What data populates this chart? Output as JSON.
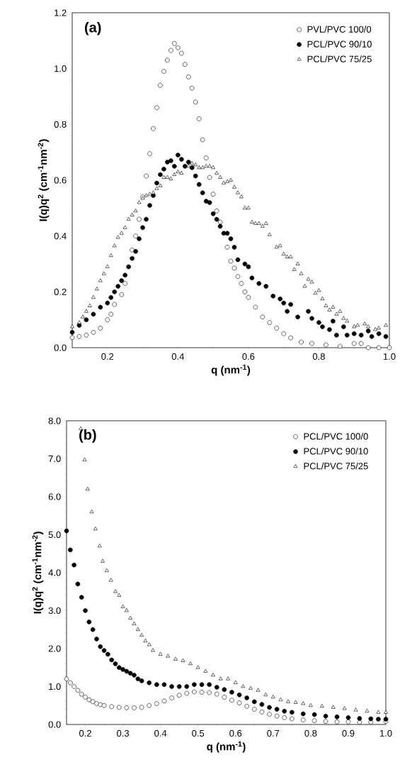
{
  "chart_data": [
    {
      "type": "scatter",
      "annotations": [
        "(a)"
      ],
      "xlabel": "q (nm$^{-1}$)",
      "ylabel": "I(q)q$^{2}$ (cm$^{-1}$nm$^{-2}$)",
      "xlim": [
        0.1,
        1.0
      ],
      "ylim": [
        0.0,
        1.2
      ],
      "xticks": [
        0.2,
        0.4,
        0.6,
        0.8,
        {
          "value": 1.0,
          "label": "1.0"
        }
      ],
      "yticks": [
        {
          "value": 0.0,
          "label": "0.0"
        },
        0.2,
        0.4,
        0.6,
        0.8,
        {
          "value": 1.0,
          "label": "1.0"
        },
        1.2
      ],
      "legend": "top right",
      "grid": false,
      "series": [
        {
          "name": "PVL/PVC 100/0",
          "color": "#ffffff",
          "marker": "circle",
          "x": [
            0.1,
            0.12,
            0.14,
            0.16,
            0.18,
            0.2,
            0.21,
            0.22,
            0.24,
            0.25,
            0.26,
            0.27,
            0.28,
            0.29,
            0.3,
            0.31,
            0.32,
            0.33,
            0.34,
            0.35,
            0.36,
            0.37,
            0.38,
            0.39,
            0.4,
            0.41,
            0.42,
            0.43,
            0.44,
            0.45,
            0.46,
            0.47,
            0.48,
            0.49,
            0.5,
            0.51,
            0.52,
            0.53,
            0.54,
            0.55,
            0.56,
            0.57,
            0.58,
            0.59,
            0.6,
            0.62,
            0.64,
            0.66,
            0.68,
            0.7,
            0.72,
            0.75,
            0.78,
            0.82,
            0.86,
            0.9,
            0.92,
            0.94,
            0.97,
            1.0
          ],
          "values": [
            0.036,
            0.04,
            0.045,
            0.055,
            0.07,
            0.1,
            0.12,
            0.155,
            0.19,
            0.23,
            null,
            0.35,
            0.4,
            0.46,
            0.54,
            0.615,
            0.695,
            0.785,
            0.86,
            0.94,
            0.99,
            1.03,
            1.065,
            1.09,
            1.075,
            1.055,
            1.015,
            0.97,
            0.93,
            0.88,
            0.82,
            0.745,
            0.68,
            0.61,
            0.55,
            0.49,
            0.45,
            null,
            0.36,
            0.31,
            0.285,
            0.255,
            0.23,
            0.2,
            0.18,
            0.145,
            0.11,
            0.09,
            0.07,
            0.05,
            0.035,
            0.02,
            0.015,
            0.01,
            0.005,
            0.015,
            0.015,
            0.0,
            0.0,
            0.0
          ]
        },
        {
          "name": "PCL/PVC 90/10",
          "color": "#000000",
          "marker": "circle",
          "x": [
            0.1,
            0.12,
            0.14,
            0.16,
            0.18,
            0.2,
            0.21,
            0.22,
            0.23,
            0.24,
            0.25,
            0.26,
            0.27,
            0.28,
            0.29,
            0.3,
            0.31,
            0.32,
            0.33,
            0.34,
            0.35,
            0.36,
            0.37,
            0.38,
            0.39,
            0.4,
            0.41,
            0.42,
            0.43,
            0.44,
            0.45,
            0.46,
            0.47,
            0.48,
            0.49,
            0.5,
            0.51,
            0.52,
            0.53,
            0.54,
            0.55,
            0.56,
            0.57,
            0.59,
            0.6,
            0.61,
            0.63,
            0.65,
            0.67,
            0.69,
            0.7,
            0.71,
            0.72,
            0.74,
            0.77,
            0.78,
            0.8,
            0.81,
            0.83,
            0.84,
            0.85,
            0.87,
            0.88,
            0.9,
            0.92,
            0.94,
            0.95,
            0.97,
            0.99
          ],
          "values": [
            0.055,
            0.08,
            0.1,
            0.12,
            0.145,
            0.16,
            0.18,
            0.2,
            0.22,
            0.24,
            0.26,
            0.29,
            0.32,
            0.345,
            0.39,
            0.43,
            0.46,
            0.51,
            0.545,
            0.59,
            0.62,
            0.64,
            0.665,
            0.67,
            0.65,
            0.69,
            0.675,
            0.65,
            0.665,
            0.645,
            0.615,
            0.585,
            0.555,
            0.525,
            0.52,
            0.48,
            0.46,
            0.435,
            0.41,
            0.41,
            0.39,
            0.36,
            0.315,
            0.3,
            0.29,
            0.25,
            0.23,
            0.22,
            0.185,
            0.175,
            0.16,
            0.13,
            0.155,
            0.11,
            0.13,
            0.105,
            0.09,
            0.075,
            0.065,
            0.095,
            0.045,
            0.075,
            0.045,
            0.05,
            0.045,
            0.06,
            0.04,
            0.05,
            0.04
          ]
        },
        {
          "name": "PCL/PVC 75/25",
          "color": "#ffffff",
          "marker": "triangle",
          "x": [
            0.1,
            0.12,
            0.13,
            0.14,
            0.15,
            0.16,
            0.17,
            0.18,
            0.19,
            0.2,
            0.21,
            0.22,
            0.23,
            0.24,
            0.25,
            0.26,
            0.27,
            0.28,
            0.29,
            0.3,
            0.31,
            0.32,
            0.33,
            0.34,
            0.35,
            0.36,
            0.37,
            0.38,
            0.39,
            0.4,
            0.41,
            0.43,
            0.44,
            0.45,
            0.46,
            0.47,
            0.48,
            0.49,
            0.5,
            0.51,
            0.52,
            0.53,
            0.54,
            0.55,
            0.56,
            0.57,
            0.58,
            0.59,
            0.6,
            0.61,
            0.62,
            0.63,
            0.64,
            0.65,
            0.66,
            0.68,
            0.69,
            0.7,
            0.71,
            0.72,
            0.73,
            0.74,
            0.75,
            0.76,
            0.77,
            0.78,
            0.79,
            0.8,
            0.81,
            0.82,
            0.83,
            0.84,
            0.85,
            0.86,
            0.87,
            0.88,
            0.9,
            0.91,
            0.93,
            0.94,
            0.96,
            0.97,
            0.99
          ],
          "values": [
            0.075,
            0.09,
            0.11,
            0.13,
            0.15,
            0.18,
            0.21,
            0.24,
            0.265,
            0.29,
            0.33,
            0.365,
            0.395,
            0.41,
            0.43,
            0.46,
            0.475,
            0.49,
            0.52,
            0.535,
            0.545,
            0.55,
            0.555,
            0.57,
            0.58,
            0.61,
            0.61,
            0.605,
            0.62,
            0.63,
            0.625,
            0.65,
            0.66,
            0.655,
            0.645,
            0.645,
            0.65,
            0.65,
            0.645,
            0.625,
            0.61,
            0.59,
            0.595,
            0.6,
            0.575,
            0.555,
            0.54,
            0.5,
            0.5,
            0.45,
            0.445,
            0.445,
            0.435,
            0.445,
            0.405,
            0.36,
            0.365,
            0.335,
            0.325,
            0.325,
            0.28,
            0.3,
            0.265,
            0.22,
            0.245,
            0.235,
            0.195,
            0.205,
            0.175,
            0.15,
            0.135,
            0.145,
            0.12,
            0.13,
            0.105,
            0.095,
            0.075,
            0.08,
            0.085,
            0.075,
            0.065,
            0.07,
            0.08
          ]
        }
      ]
    },
    {
      "type": "scatter",
      "annotations": [
        "(b)"
      ],
      "xlabel": "q (nm$^{-1}$)",
      "ylabel": "I(q)q$^{2}$ (cm$^{-1}$nm$^{-2}$)",
      "xlim": [
        0.15,
        1.0
      ],
      "ylim": [
        0.0,
        8.0
      ],
      "xticks": [
        0.2,
        0.3,
        0.4,
        0.5,
        0.6,
        0.7,
        0.8,
        0.9,
        {
          "value": 1.0,
          "label": "1.0"
        }
      ],
      "yticks": [
        {
          "value": 0.0,
          "label": "0.0"
        },
        {
          "value": 1.0,
          "label": "1.0"
        },
        {
          "value": 2.0,
          "label": "2.0"
        },
        {
          "value": 3.0,
          "label": "3.0"
        },
        {
          "value": 4.0,
          "label": "4.0"
        },
        {
          "value": 5.0,
          "label": "5.0"
        },
        {
          "value": 6.0,
          "label": "6.0"
        },
        {
          "value": 7.0,
          "label": "7.0"
        },
        {
          "value": 8.0,
          "label": "8.0"
        }
      ],
      "legend": "top right",
      "grid": false,
      "series": [
        {
          "name": "PCL/PVC 100/0",
          "color": "#ffffff",
          "marker": "circle",
          "x": [
            0.15,
            0.16,
            0.17,
            0.18,
            0.19,
            0.2,
            0.21,
            0.22,
            0.23,
            0.24,
            0.25,
            0.27,
            0.29,
            0.31,
            0.33,
            0.35,
            0.37,
            0.39,
            0.41,
            0.43,
            0.45,
            0.47,
            0.49,
            0.51,
            0.53,
            0.55,
            0.57,
            0.59,
            0.61,
            0.63,
            0.65,
            0.67,
            0.69,
            0.71,
            0.73,
            0.75,
            0.78,
            0.81,
            0.84,
            0.87,
            0.9,
            0.93,
            0.96,
            0.98,
            1.0
          ],
          "values": [
            1.2,
            1.1,
            1.0,
            0.9,
            0.8,
            0.72,
            0.65,
            0.6,
            0.55,
            0.52,
            0.5,
            0.47,
            0.45,
            0.44,
            0.44,
            0.45,
            0.5,
            0.55,
            0.62,
            0.7,
            0.77,
            0.82,
            0.86,
            0.85,
            0.84,
            0.8,
            0.72,
            0.64,
            0.57,
            0.48,
            0.4,
            0.33,
            0.27,
            0.22,
            0.18,
            0.15,
            0.12,
            0.1,
            0.08,
            0.07,
            0.07,
            0.06,
            0.06,
            null,
            0.08
          ]
        },
        {
          "name": "PCL/PVC 90/10",
          "color": "#000000",
          "marker": "circle",
          "x": [
            0.15,
            0.16,
            0.17,
            0.18,
            0.19,
            0.2,
            0.21,
            0.22,
            0.23,
            0.24,
            0.25,
            0.26,
            0.27,
            0.28,
            0.29,
            0.3,
            0.31,
            0.32,
            0.33,
            0.34,
            0.35,
            0.37,
            0.39,
            0.41,
            0.43,
            0.45,
            0.47,
            0.49,
            0.51,
            0.53,
            0.55,
            0.57,
            0.59,
            0.61,
            0.63,
            0.65,
            0.67,
            0.69,
            0.71,
            0.73,
            0.75,
            0.78,
            0.81,
            0.84,
            0.87,
            0.9,
            0.93,
            0.96,
            0.98,
            1.0
          ],
          "values": [
            5.1,
            4.6,
            4.2,
            3.7,
            3.35,
            3.0,
            2.7,
            2.5,
            2.25,
            2.05,
            1.95,
            1.85,
            1.7,
            1.6,
            1.5,
            1.45,
            1.4,
            1.35,
            1.3,
            1.2,
            1.15,
            1.1,
            1.05,
            1.05,
            1.0,
            1.0,
            1.0,
            1.05,
            1.05,
            1.05,
            0.98,
            0.92,
            0.85,
            0.78,
            0.7,
            0.6,
            0.53,
            0.45,
            0.4,
            0.35,
            0.32,
            0.28,
            0.26,
            0.22,
            0.2,
            0.18,
            0.16,
            0.15,
            0.14,
            0.14
          ]
        },
        {
          "name": "PCL/PVC 75/25",
          "color": "#ffffff",
          "marker": "triangle",
          "x": [
            0.188,
            0.198,
            0.206,
            0.217,
            0.227,
            0.238,
            0.246,
            0.257,
            0.268,
            0.28,
            0.29,
            0.3,
            0.31,
            0.32,
            0.33,
            0.34,
            0.35,
            0.36,
            0.37,
            0.38,
            0.4,
            0.42,
            0.44,
            0.46,
            0.48,
            0.5,
            0.52,
            0.54,
            0.56,
            0.58,
            0.6,
            0.62,
            0.64,
            0.66,
            0.68,
            0.7,
            0.72,
            0.74,
            0.76,
            0.78,
            0.8,
            0.83,
            0.86,
            0.89,
            0.92,
            0.95,
            0.98,
            1.0
          ],
          "values": [
            7.79,
            6.97,
            6.2,
            5.6,
            5.15,
            4.7,
            4.3,
            4.05,
            3.8,
            3.5,
            3.4,
            3.1,
            3.0,
            2.8,
            2.65,
            2.5,
            2.35,
            2.2,
            2.1,
            1.95,
            1.85,
            1.8,
            1.72,
            1.68,
            1.6,
            1.5,
            1.4,
            1.3,
            1.2,
            1.2,
            1.1,
            1.0,
            0.95,
            0.9,
            0.78,
            0.72,
            0.65,
            0.6,
            0.58,
            0.55,
            0.5,
            0.48,
            0.45,
            0.42,
            0.38,
            0.35,
            0.32,
            0.32
          ]
        }
      ]
    }
  ]
}
